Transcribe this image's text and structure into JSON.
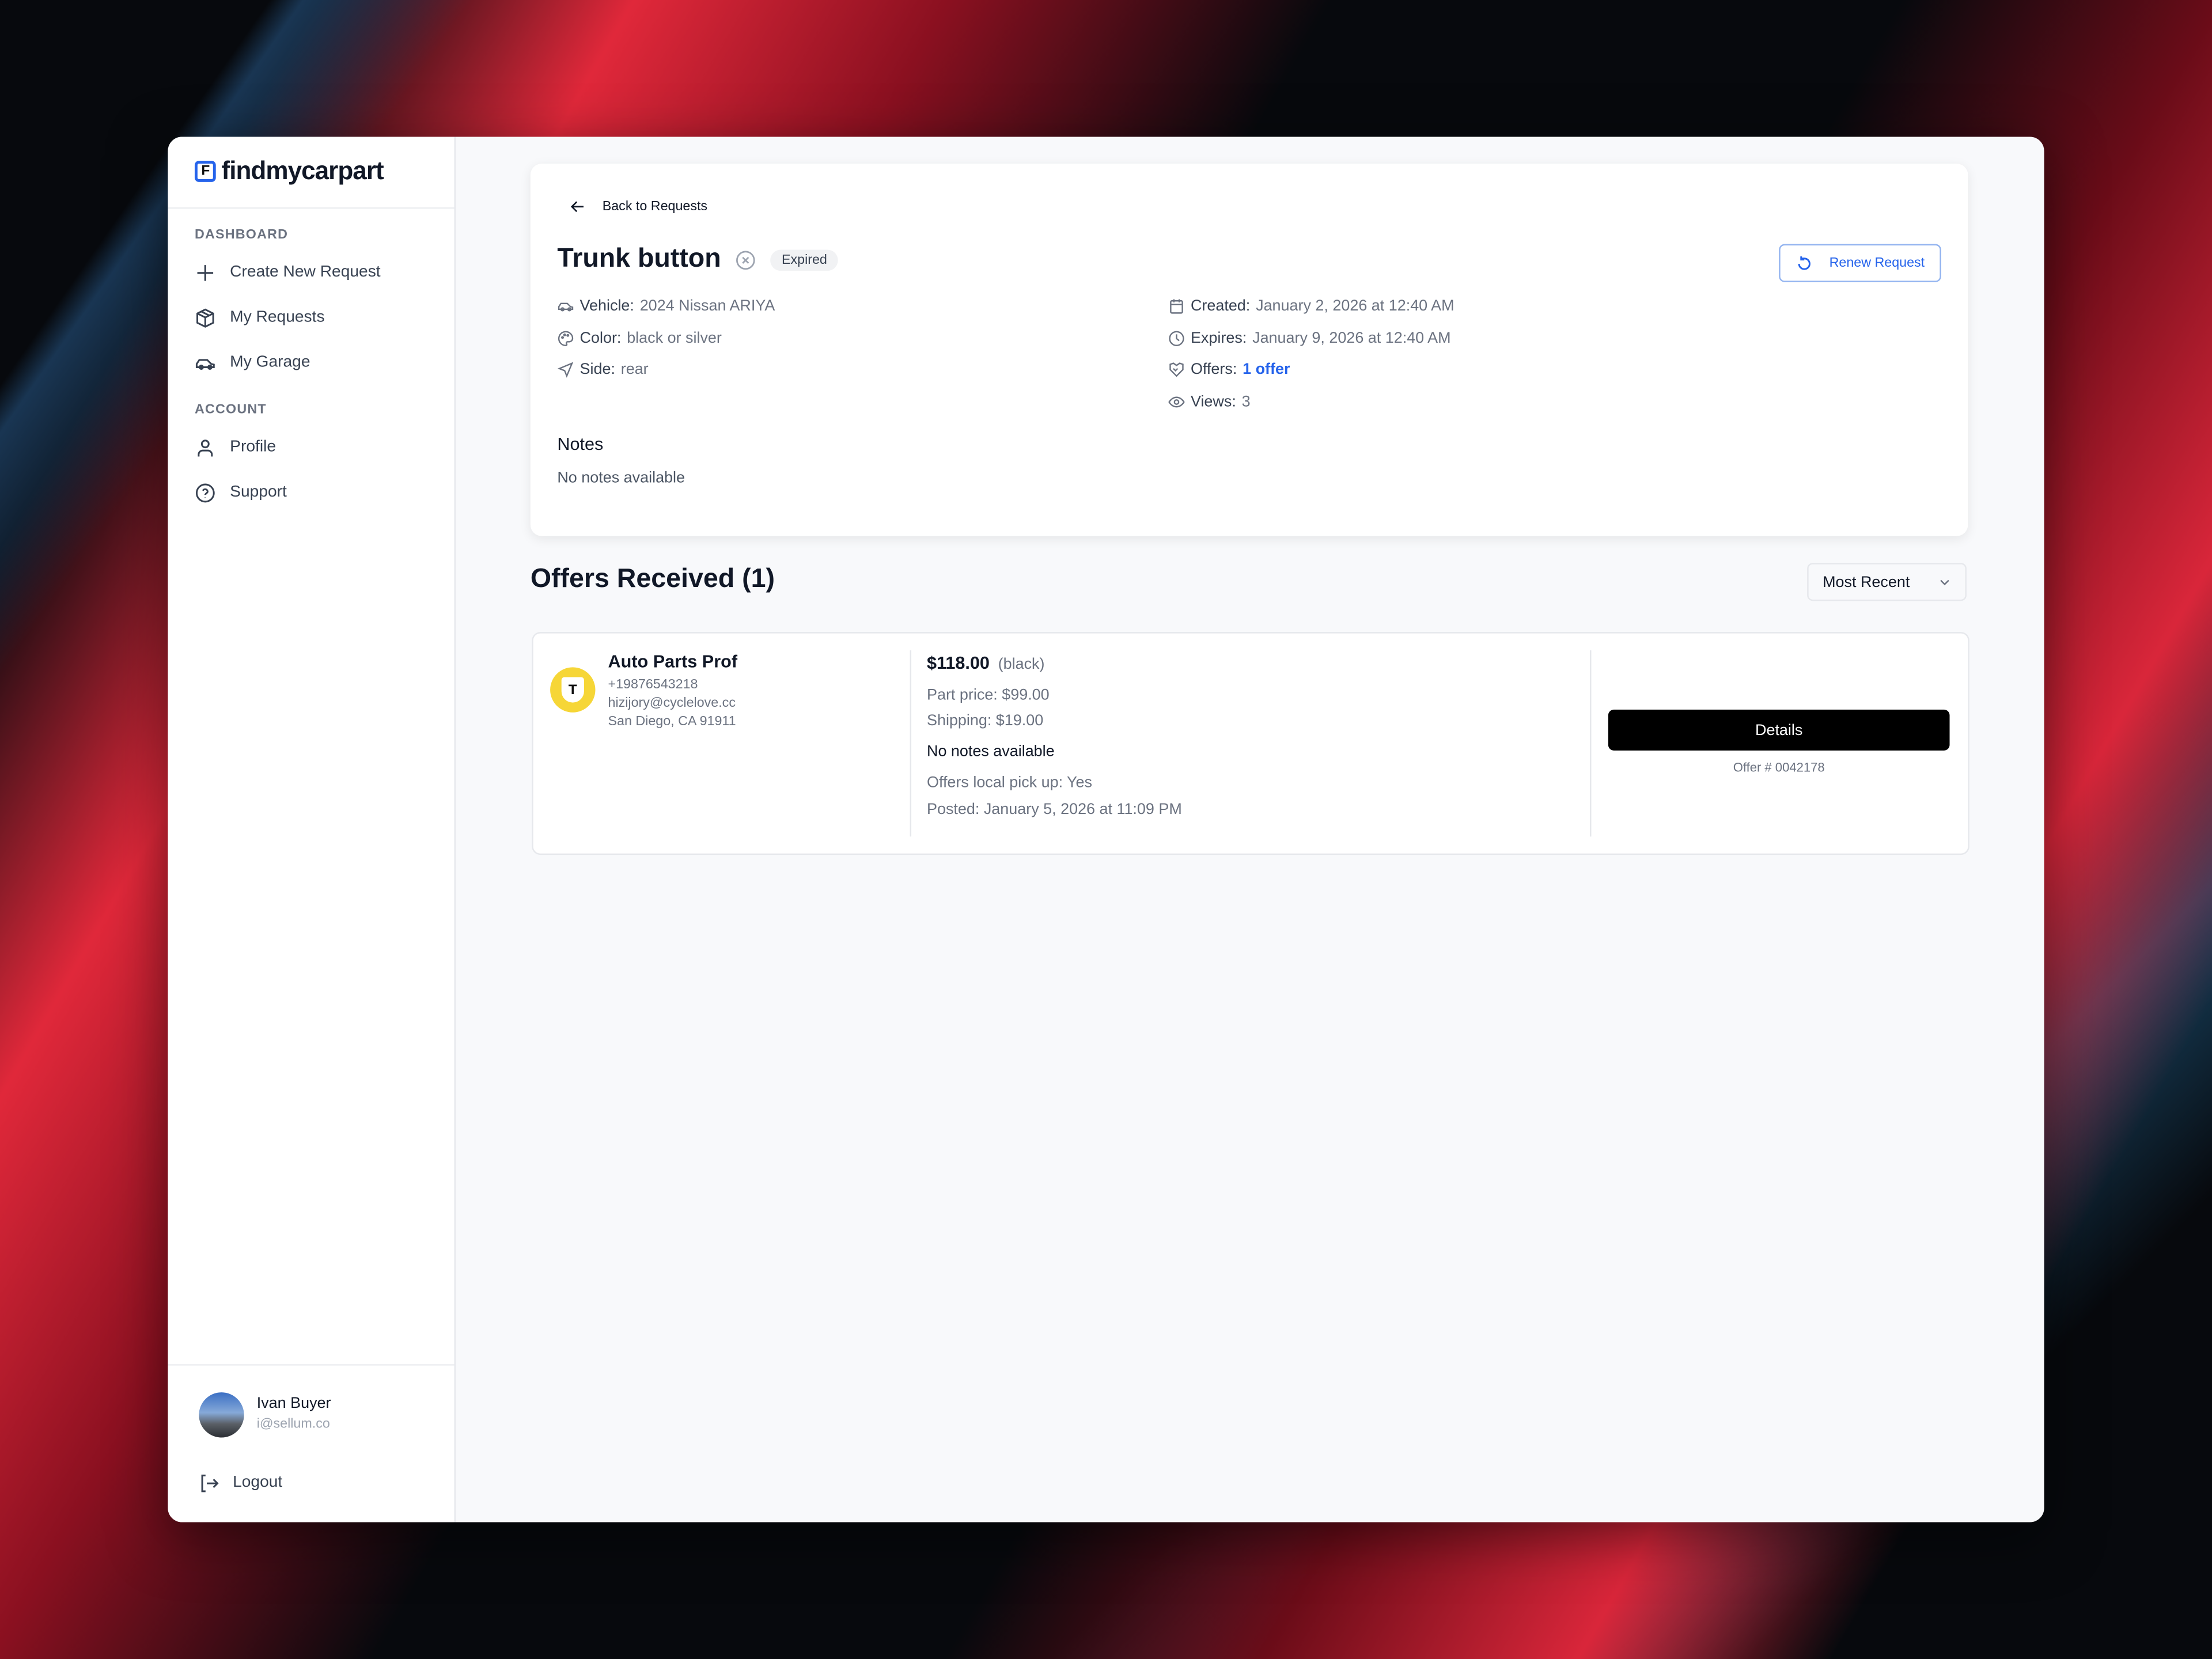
{
  "brand": {
    "name": "findmycarpart",
    "logo_letter": "F",
    "accent": "#2563eb"
  },
  "sidebar": {
    "sections": [
      {
        "label": "DASHBOARD",
        "items": [
          {
            "label": "Create New Request",
            "icon": "plus-icon"
          },
          {
            "label": "My Requests",
            "icon": "box-icon"
          },
          {
            "label": "My Garage",
            "icon": "car-icon"
          }
        ]
      },
      {
        "label": "ACCOUNT",
        "items": [
          {
            "label": "Profile",
            "icon": "user-icon"
          },
          {
            "label": "Support",
            "icon": "help-circle-icon"
          }
        ]
      }
    ],
    "user": {
      "name": "Ivan Buyer",
      "email": "i@sellum.co"
    },
    "logout_label": "Logout"
  },
  "request": {
    "back_label": "Back to Requests",
    "title": "Trunk button",
    "status": "Expired",
    "renew_label": "Renew Request",
    "vehicle_label": "Vehicle:",
    "vehicle": "2024 Nissan ARIYA",
    "color_label": "Color:",
    "color": "black or silver",
    "side_label": "Side:",
    "side": "rear",
    "created_label": "Created:",
    "created": "January 2, 2026 at 12:40 AM",
    "expires_label": "Expires:",
    "expires": "January 9, 2026 at 12:40 AM",
    "offers_label": "Offers:",
    "offers": "1 offer",
    "views_label": "Views:",
    "views": "3",
    "notes_title": "Notes",
    "notes": "No notes available"
  },
  "offers": {
    "heading": "Offers Received (1)",
    "sort": "Most Recent",
    "items": [
      {
        "seller": "Auto Parts Prof",
        "seller_initial": "T",
        "phone": "+19876543218",
        "email": "hizijory@cyclelove.cc",
        "address": "San Diego, CA 91911",
        "total": "$118.00",
        "color": "(black)",
        "part_price": "Part price: $99.00",
        "shipping": "Shipping: $19.00",
        "notes": "No notes available",
        "pickup": "Offers local pick up: Yes",
        "posted": "Posted: January 5, 2026 at 11:09 PM",
        "details_label": "Details",
        "offer_number": "Offer # 0042178"
      }
    ]
  }
}
